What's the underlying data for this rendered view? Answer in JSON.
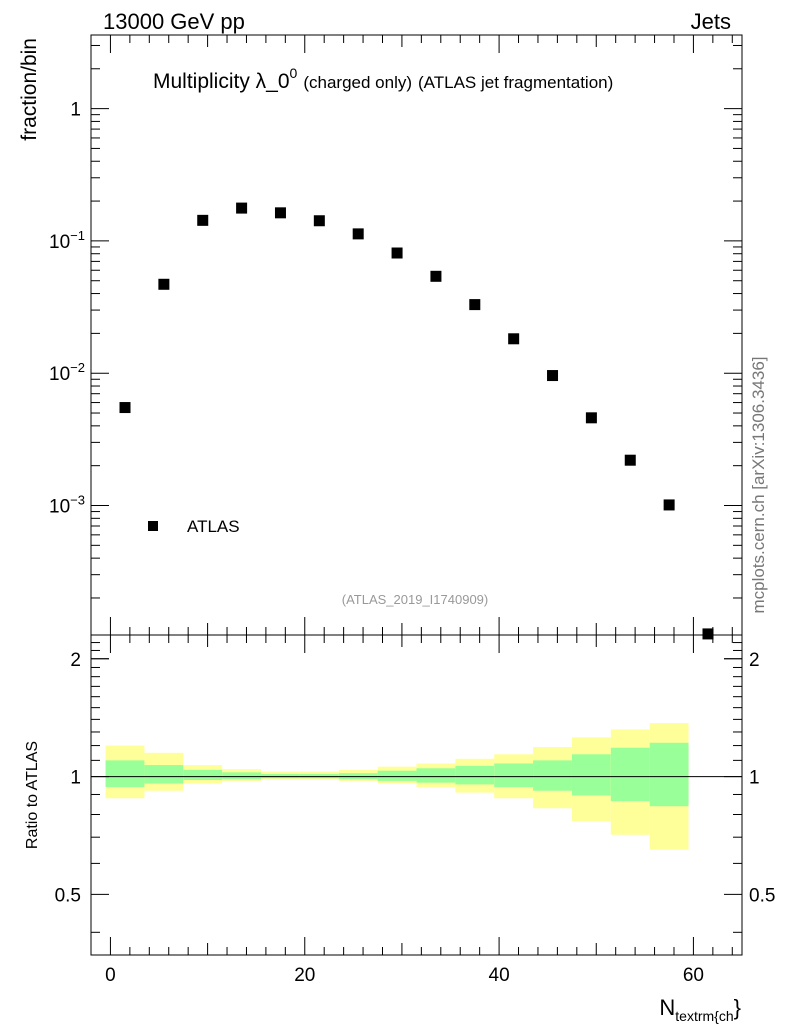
{
  "header": {
    "left": "13000 GeV pp",
    "right": "Jets"
  },
  "title": {
    "main": "Multiplicity λ_0",
    "superscript": "0",
    "sub1": "(charged only)",
    "sub2": "(ATLAS jet fragmentation)"
  },
  "watermark": "mcplots.cern.ch [arXiv:1306.3436]",
  "analysis_label": "(ATLAS_2019_I1740909)",
  "xlabel": {
    "main": "N",
    "sub": "textrm{ch",
    "tail": "}"
  },
  "chart_data": [
    {
      "type": "scatter",
      "panel": "main",
      "yscale": "log",
      "ylabel": "fraction/bin",
      "xlim": [
        -2,
        65
      ],
      "ylim": [
        0.000105,
        3.6
      ],
      "yticks": [
        {
          "value": 1,
          "label": "1"
        },
        {
          "value": 0.1,
          "label": "10",
          "exp": "−1"
        },
        {
          "value": 0.01,
          "label": "10",
          "exp": "−2"
        },
        {
          "value": 0.001,
          "label": "10",
          "exp": "−3"
        }
      ],
      "legend": {
        "position": "bottom-left",
        "entries": [
          "ATLAS"
        ]
      },
      "series": [
        {
          "name": "ATLAS",
          "color": "#000000",
          "x": [
            1.5,
            5.5,
            9.5,
            13.5,
            17.5,
            21.5,
            25.5,
            29.5,
            33.5,
            37.5,
            41.5,
            45.5,
            49.5,
            53.5,
            57.5,
            61.5
          ],
          "y": [
            0.0055,
            0.047,
            0.143,
            0.177,
            0.163,
            0.142,
            0.113,
            0.081,
            0.054,
            0.033,
            0.0182,
            0.0096,
            0.0046,
            0.0022,
            0.00101,
            0.000107
          ]
        }
      ]
    },
    {
      "type": "area",
      "panel": "ratio",
      "ylabel": "Ratio to ATLAS",
      "xlabel": "N_textrm{ch}",
      "xlim": [
        -2,
        65
      ],
      "ylim": [
        0.35,
        2.3
      ],
      "yscale": "log",
      "yticks": [
        {
          "value": 0.5,
          "label": "0.5"
        },
        {
          "value": 1,
          "label": "1"
        },
        {
          "value": 2,
          "label": "2"
        }
      ],
      "xticks": [
        {
          "value": 0,
          "label": "0"
        },
        {
          "value": 20,
          "label": "20"
        },
        {
          "value": 40,
          "label": "40"
        },
        {
          "value": 60,
          "label": "60"
        }
      ],
      "reference_line": 1,
      "bins": [
        {
          "lo": -0.5,
          "hi": 3.5,
          "yellow": [
            0.88,
            1.2
          ],
          "green": [
            0.94,
            1.1
          ]
        },
        {
          "lo": 3.5,
          "hi": 7.5,
          "yellow": [
            0.92,
            1.15
          ],
          "green": [
            0.96,
            1.07
          ]
        },
        {
          "lo": 7.5,
          "hi": 11.5,
          "yellow": [
            0.96,
            1.07
          ],
          "green": [
            0.98,
            1.04
          ]
        },
        {
          "lo": 11.5,
          "hi": 15.5,
          "yellow": [
            0.975,
            1.045
          ],
          "green": [
            0.985,
            1.025
          ]
        },
        {
          "lo": 15.5,
          "hi": 19.5,
          "yellow": [
            0.985,
            1.03
          ],
          "green": [
            0.99,
            1.015
          ]
        },
        {
          "lo": 19.5,
          "hi": 23.5,
          "yellow": [
            0.985,
            1.03
          ],
          "green": [
            0.99,
            1.015
          ]
        },
        {
          "lo": 23.5,
          "hi": 27.5,
          "yellow": [
            0.975,
            1.04
          ],
          "green": [
            0.985,
            1.02
          ]
        },
        {
          "lo": 27.5,
          "hi": 31.5,
          "yellow": [
            0.96,
            1.06
          ],
          "green": [
            0.975,
            1.035
          ]
        },
        {
          "lo": 31.5,
          "hi": 35.5,
          "yellow": [
            0.94,
            1.08
          ],
          "green": [
            0.965,
            1.05
          ]
        },
        {
          "lo": 35.5,
          "hi": 39.5,
          "yellow": [
            0.91,
            1.11
          ],
          "green": [
            0.955,
            1.065
          ]
        },
        {
          "lo": 39.5,
          "hi": 43.5,
          "yellow": [
            0.88,
            1.14
          ],
          "green": [
            0.94,
            1.08
          ]
        },
        {
          "lo": 43.5,
          "hi": 47.5,
          "yellow": [
            0.83,
            1.19
          ],
          "green": [
            0.92,
            1.1
          ]
        },
        {
          "lo": 47.5,
          "hi": 51.5,
          "yellow": [
            0.77,
            1.26
          ],
          "green": [
            0.895,
            1.14
          ]
        },
        {
          "lo": 51.5,
          "hi": 55.5,
          "yellow": [
            0.71,
            1.32
          ],
          "green": [
            0.865,
            1.185
          ]
        },
        {
          "lo": 55.5,
          "hi": 59.5,
          "yellow": [
            0.65,
            1.37
          ],
          "green": [
            0.84,
            1.22
          ]
        }
      ],
      "colors": {
        "yellow": "#ffff99",
        "green": "#99ff99"
      }
    }
  ]
}
